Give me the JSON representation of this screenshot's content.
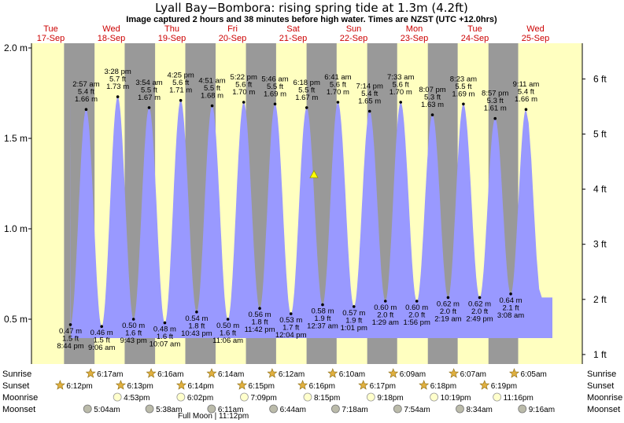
{
  "title": "Lyall Bay−Bombora: rising  spring tide at 1.3m (4.2ft)",
  "subtitle": "Image captured 2 hours and 38 minutes before high water. Times are NZST (UTC +12.0hrs)",
  "days": [
    {
      "dow": "Tue",
      "date": "17-Sep"
    },
    {
      "dow": "Wed",
      "date": "18-Sep"
    },
    {
      "dow": "Thu",
      "date": "19-Sep"
    },
    {
      "dow": "Fri",
      "date": "20-Sep"
    },
    {
      "dow": "Sat",
      "date": "21-Sep"
    },
    {
      "dow": "Sun",
      "date": "22-Sep"
    },
    {
      "dow": "Mon",
      "date": "23-Sep"
    },
    {
      "dow": "Tue",
      "date": "24-Sep"
    },
    {
      "dow": "Wed",
      "date": "25-Sep"
    }
  ],
  "colors": {
    "day": "#ffffc0",
    "night": "#999999",
    "water": "#9999ff",
    "day_label": "#cc0000"
  },
  "chart_data": {
    "type": "area",
    "y_left_label_unit": "m",
    "y_right_label_unit": "ft",
    "y_left_ticks": [
      0.5,
      1.0,
      1.5,
      2.0
    ],
    "y_left_tick_labels": [
      "0.5 m",
      "1.0 m",
      "1.5 m",
      "2.0 m"
    ],
    "y_right_ticks": [
      1,
      2,
      3,
      4,
      5,
      6
    ],
    "y_right_tick_labels": [
      "1 ft",
      "2 ft",
      "3 ft",
      "4 ft",
      "5 ft",
      "6 ft"
    ],
    "ylim": [
      0.25,
      2.05
    ],
    "x_days": [
      "17-Sep",
      "18-Sep",
      "19-Sep",
      "20-Sep",
      "21-Sep",
      "22-Sep",
      "23-Sep",
      "24-Sep",
      "25-Sep"
    ],
    "tide_events": [
      {
        "type": "low",
        "time": "8:44 pm",
        "height_m": 0.47,
        "height_ft": "1.5 ft",
        "day": 0,
        "label_m": "0.47 m"
      },
      {
        "type": "high",
        "time": "2:57 am",
        "height_m": 1.66,
        "height_ft": "5.4 ft",
        "day": 1,
        "label_m": "1.66 m"
      },
      {
        "type": "low",
        "time": "9:06 am",
        "height_m": 0.46,
        "height_ft": "1.5 ft",
        "day": 1,
        "label_m": "0.46 m"
      },
      {
        "type": "high",
        "time": "3:28 pm",
        "height_m": 1.73,
        "height_ft": "5.7 ft",
        "day": 1,
        "label_m": "1.73 m"
      },
      {
        "type": "low",
        "time": "9:43 pm",
        "height_m": 0.5,
        "height_ft": "1.6 ft",
        "day": 1,
        "label_m": "0.50 m"
      },
      {
        "type": "high",
        "time": "3:54 am",
        "height_m": 1.67,
        "height_ft": "5.5 ft",
        "day": 2,
        "label_m": "1.67 m"
      },
      {
        "type": "low",
        "time": "10:07 am",
        "height_m": 0.48,
        "height_ft": "1.6 ft",
        "day": 2,
        "label_m": "0.48 m"
      },
      {
        "type": "high",
        "time": "4:25 pm",
        "height_m": 1.71,
        "height_ft": "5.6 ft",
        "day": 2,
        "label_m": "1.71 m"
      },
      {
        "type": "low",
        "time": "10:43 pm",
        "height_m": 0.54,
        "height_ft": "1.8 ft",
        "day": 2,
        "label_m": "0.54 m"
      },
      {
        "type": "high",
        "time": "4:51 am",
        "height_m": 1.68,
        "height_ft": "5.5 ft",
        "day": 3,
        "label_m": "1.68 m"
      },
      {
        "type": "low",
        "time": "11:06 am",
        "height_m": 0.5,
        "height_ft": "1.6 ft",
        "day": 3,
        "label_m": "0.50 m"
      },
      {
        "type": "high",
        "time": "5:22 pm",
        "height_m": 1.7,
        "height_ft": "5.6 ft",
        "day": 3,
        "label_m": "1.70 m"
      },
      {
        "type": "low",
        "time": "11:42 pm",
        "height_m": 0.56,
        "height_ft": "1.8 ft",
        "day": 3,
        "label_m": "0.56 m"
      },
      {
        "type": "high",
        "time": "5:46 am",
        "height_m": 1.69,
        "height_ft": "5.5 ft",
        "day": 4,
        "label_m": "1.69 m"
      },
      {
        "type": "low",
        "time": "12:04 pm",
        "height_m": 0.53,
        "height_ft": "1.7 ft",
        "day": 4,
        "label_m": "0.53 m"
      },
      {
        "type": "high",
        "time": "6:18 pm",
        "height_m": 1.67,
        "height_ft": "5.5 ft",
        "day": 4,
        "label_m": "1.67 m"
      },
      {
        "type": "low",
        "time": "12:37 am",
        "height_m": 0.58,
        "height_ft": "1.9 ft",
        "day": 5,
        "label_m": "0.58 m"
      },
      {
        "type": "high",
        "time": "6:41 am",
        "height_m": 1.7,
        "height_ft": "5.6 ft",
        "day": 5,
        "label_m": "1.70 m"
      },
      {
        "type": "low",
        "time": "1:01 pm",
        "height_m": 0.57,
        "height_ft": "1.9 ft",
        "day": 5,
        "label_m": "0.57 m"
      },
      {
        "type": "high",
        "time": "7:14 pm",
        "height_m": 1.65,
        "height_ft": "5.4 ft",
        "day": 5,
        "label_m": "1.65 m"
      },
      {
        "type": "low",
        "time": "1:29 am",
        "height_m": 0.6,
        "height_ft": "2.0 ft",
        "day": 6,
        "label_m": "0.60 m"
      },
      {
        "type": "high",
        "time": "7:33 am",
        "height_m": 1.7,
        "height_ft": "5.6 ft",
        "day": 6,
        "label_m": "1.70 m"
      },
      {
        "type": "low",
        "time": "1:56 pm",
        "height_m": 0.6,
        "height_ft": "2.0 ft",
        "day": 6,
        "label_m": "0.60 m"
      },
      {
        "type": "high",
        "time": "8:07 pm",
        "height_m": 1.63,
        "height_ft": "5.3 ft",
        "day": 6,
        "label_m": "1.63 m"
      },
      {
        "type": "low",
        "time": "2:19 am",
        "height_m": 0.62,
        "height_ft": "2.0 ft",
        "day": 7,
        "label_m": "0.62 m"
      },
      {
        "type": "high",
        "time": "8:23 am",
        "height_m": 1.69,
        "height_ft": "5.5 ft",
        "day": 7,
        "label_m": "1.69 m"
      },
      {
        "type": "low",
        "time": "2:49 pm",
        "height_m": 0.62,
        "height_ft": "2.0 ft",
        "day": 7,
        "label_m": "0.62 m"
      },
      {
        "type": "high",
        "time": "8:57 pm",
        "height_m": 1.61,
        "height_ft": "5.3 ft",
        "day": 7,
        "label_m": "1.61 m"
      },
      {
        "type": "low",
        "time": "3:08 am",
        "height_m": 0.64,
        "height_ft": "2.1 ft",
        "day": 8,
        "label_m": "0.64 m"
      },
      {
        "type": "high",
        "time": "9:11 am",
        "height_m": 1.66,
        "height_ft": "5.4 ft",
        "day": 8,
        "label_m": "1.66 m"
      }
    ],
    "current_marker_height_m": 1.3,
    "sunrise": [
      "6:17am",
      "6:16am",
      "6:14am",
      "6:12am",
      "6:10am",
      "6:09am",
      "6:07am",
      "6:05am"
    ],
    "sunset": [
      "6:12pm",
      "6:13pm",
      "6:14pm",
      "6:15pm",
      "6:16pm",
      "6:17pm",
      "6:18pm",
      "6:19pm"
    ],
    "moonrise": [
      "4:53pm",
      "6:02pm",
      "7:09pm",
      "8:15pm",
      "9:18pm",
      "10:19pm",
      "11:16pm"
    ],
    "moonset": [
      "5:04am",
      "5:38am",
      "6:11am",
      "6:44am",
      "7:18am",
      "7:54am",
      "8:34am",
      "9:16am"
    ],
    "moon_phase_note": "Full Moon | 11:12pm"
  },
  "rows": {
    "sunrise": "Sunrise",
    "sunset": "Sunset",
    "moonrise": "Moonrise",
    "moonset": "Moonset"
  }
}
